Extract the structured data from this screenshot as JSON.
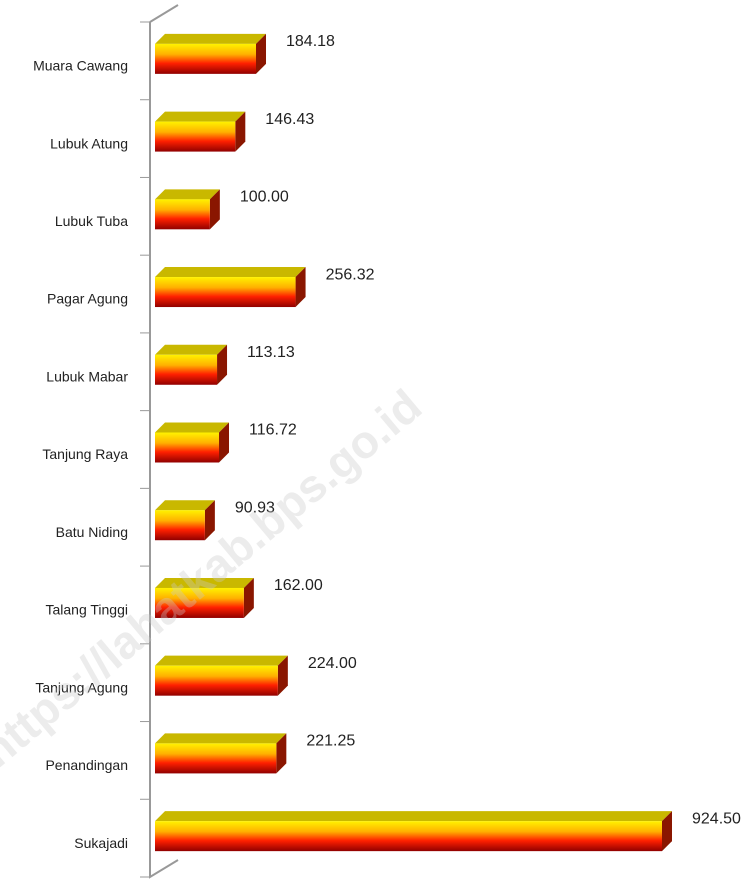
{
  "chart_data": {
    "type": "bar3d_horizontal",
    "categories": [
      "Muara Cawang",
      "Lubuk Atung",
      "Lubuk Tuba",
      "Pagar Agung",
      "Lubuk Mabar",
      "Tanjung Raya",
      "Batu Niding",
      "Talang Tinggi",
      "Tanjung Agung",
      "Penandingan",
      "Sukajadi"
    ],
    "values": [
      184.18,
      146.43,
      100.0,
      256.32,
      113.13,
      116.72,
      90.93,
      162.0,
      224.0,
      221.25,
      924.5
    ],
    "value_labels": [
      "184.18",
      "146.43",
      "100.00",
      "256.32",
      "113.13",
      "116.72",
      "90.93",
      "162.00",
      "224.00",
      "221.25",
      "924.50"
    ],
    "watermark": "https://lahatkab.bps.go.id"
  }
}
